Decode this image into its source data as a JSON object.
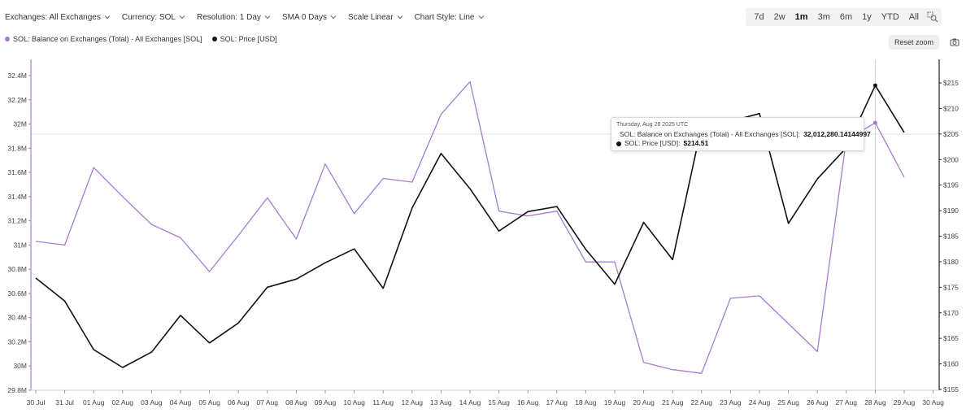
{
  "toolbar": {
    "exchanges": "Exchanges: All Exchanges",
    "currency": "Currency: SOL",
    "resolution": "Resolution: 1 Day",
    "sma": "SMA 0 Days",
    "scale": "Scale Linear",
    "chart_style": "Chart Style: Line"
  },
  "ranges": [
    "7d",
    "2w",
    "1m",
    "3m",
    "6m",
    "1y",
    "YTD",
    "All"
  ],
  "active_range": "1m",
  "reset_zoom": "Reset zoom",
  "legend": [
    {
      "label": "SOL: Balance on Exchanges (Total) - All Exchanges [SOL]",
      "color": "#a77bd0"
    },
    {
      "label": "SOL: Price [USD]",
      "color": "#111111"
    }
  ],
  "tooltip": {
    "date": "Thursday, Aug 28 2025 UTC",
    "rows": [
      {
        "label": "SOL: Balance on Exchanges (Total) - All Exchanges [SOL]: ",
        "value": "32,012,280.14144997",
        "color": "#a77bd0"
      },
      {
        "label": "SOL: Price [USD]: ",
        "value": "$214.51",
        "color": "#111111"
      }
    ]
  },
  "chart_data": {
    "type": "line",
    "x": [
      "30 Jul",
      "31 Jul",
      "01 Aug",
      "02 Aug",
      "03 Aug",
      "04 Aug",
      "05 Aug",
      "06 Aug",
      "07 Aug",
      "08 Aug",
      "09 Aug",
      "10 Aug",
      "11 Aug",
      "12 Aug",
      "13 Aug",
      "14 Aug",
      "15 Aug",
      "16 Aug",
      "17 Aug",
      "18 Aug",
      "19 Aug",
      "20 Aug",
      "21 Aug",
      "22 Aug",
      "23 Aug",
      "24 Aug",
      "25 Aug",
      "26 Aug",
      "27 Aug",
      "28 Aug",
      "29 Aug",
      "30 Aug"
    ],
    "series": [
      {
        "name": "SOL: Balance on Exchanges (Total) - All Exchanges [SOL]",
        "axis": "left",
        "color": "#a77bd0",
        "values": [
          31030000,
          31000000,
          31640000,
          31400000,
          31170000,
          31060000,
          30780000,
          31080000,
          31390000,
          31050000,
          31670000,
          31260000,
          31550000,
          31520000,
          32080000,
          32350000,
          31280000,
          31240000,
          31280000,
          30860000,
          30860000,
          30030000,
          29970000,
          29940000,
          30560000,
          30580000,
          30350000,
          30120000,
          31870000,
          32010000,
          31560000,
          null
        ]
      },
      {
        "name": "SOL: Price [USD]",
        "axis": "right",
        "color": "#111111",
        "values": [
          176.8,
          172.3,
          162.8,
          159.3,
          162.3,
          169.5,
          164.1,
          168.0,
          175.0,
          176.6,
          179.8,
          182.5,
          174.8,
          190.5,
          201.2,
          194.3,
          186.0,
          189.8,
          190.8,
          182.4,
          175.6,
          187.7,
          180.4,
          206.5,
          207.5,
          209.0,
          187.5,
          196.2,
          202.3,
          214.51,
          205.3,
          null
        ]
      }
    ],
    "y_left": {
      "ticks": [
        "29.8M",
        "30M",
        "30.2M",
        "30.4M",
        "30.6M",
        "30.8M",
        "31M",
        "31.2M",
        "31.4M",
        "31.6M",
        "31.8M",
        "32M",
        "32.2M",
        "32.4M"
      ],
      "min": 29800000,
      "max": 32400000
    },
    "y_right": {
      "ticks": [
        "$155",
        "$160",
        "$165",
        "$170",
        "$175",
        "$180",
        "$185",
        "$190",
        "$195",
        "$200",
        "$205",
        "$210",
        "$215"
      ],
      "min": 155,
      "max": 215
    },
    "highlight_index": 29
  }
}
